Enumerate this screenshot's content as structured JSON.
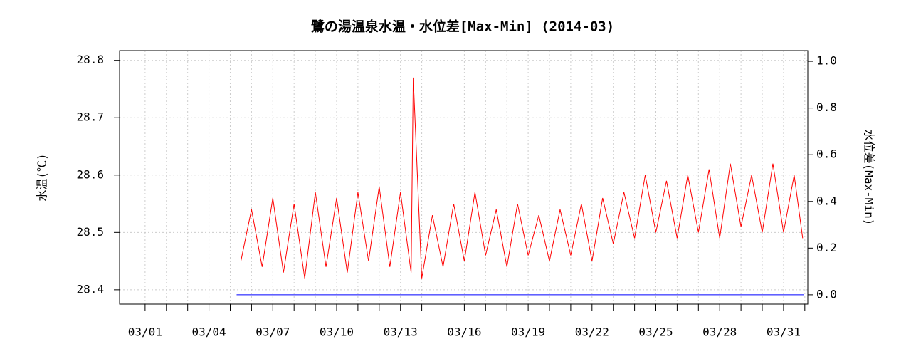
{
  "chart_data": {
    "type": "line",
    "title": "鷺の湯温泉水温・水位差[Max-Min] (2014-03)",
    "ylabel": "水温(℃)",
    "y2label": "水位差(Max-Min)",
    "grid": true,
    "xlim": [
      -0.2,
      32.14
    ],
    "xticks": [
      {
        "value": 1,
        "label": "03/01"
      },
      {
        "value": 4,
        "label": "03/04"
      },
      {
        "value": 7,
        "label": "03/07"
      },
      {
        "value": 10,
        "label": "03/10"
      },
      {
        "value": 13,
        "label": "03/13"
      },
      {
        "value": 16,
        "label": "03/16"
      },
      {
        "value": 19,
        "label": "03/19"
      },
      {
        "value": 22,
        "label": "03/22"
      },
      {
        "value": 25,
        "label": "03/25"
      },
      {
        "value": 28,
        "label": "03/28"
      },
      {
        "value": 31,
        "label": "03/31"
      }
    ],
    "xminor": [
      2,
      3,
      5,
      6,
      8,
      9,
      11,
      12,
      14,
      15,
      17,
      18,
      20,
      21,
      23,
      24,
      26,
      27,
      29,
      30,
      32
    ],
    "ylim": [
      28.375,
      28.817
    ],
    "yticks": [
      {
        "value": 28.4,
        "label": "28.4"
      },
      {
        "value": 28.5,
        "label": "28.5"
      },
      {
        "value": 28.6,
        "label": "28.6"
      },
      {
        "value": 28.7,
        "label": "28.7"
      },
      {
        "value": 28.8,
        "label": "28.8"
      }
    ],
    "y2lim": [
      -0.04,
      1.046
    ],
    "y2ticks": [
      {
        "value": 0,
        "label": "0.0"
      },
      {
        "value": 0.2,
        "label": "0.2"
      },
      {
        "value": 0.4,
        "label": "0.4"
      },
      {
        "value": 0.6,
        "label": "0.6"
      },
      {
        "value": 0.8,
        "label": "0.8"
      },
      {
        "value": 1,
        "label": "1.0"
      }
    ],
    "series": [
      {
        "color": "#ff0000",
        "x": [
          5.5,
          6,
          6.5,
          7,
          7.5,
          8,
          8.5,
          9,
          9.5,
          10,
          10.5,
          11,
          11.5,
          12,
          12.5,
          13,
          13.5,
          13.6,
          14,
          14.5,
          15,
          15.5,
          16,
          16.5,
          17,
          17.5,
          18,
          18.5,
          19,
          19.5,
          20,
          20.5,
          21,
          21.5,
          22,
          22.5,
          23,
          23.5,
          24,
          24.5,
          25,
          25.5,
          26,
          26.5,
          27,
          27.5,
          28,
          28.5,
          29,
          29.5,
          30,
          30.5,
          31,
          31.5,
          31.9
        ],
        "values": [
          28.45,
          28.54,
          28.44,
          28.56,
          28.43,
          28.55,
          28.42,
          28.57,
          28.44,
          28.56,
          28.43,
          28.57,
          28.45,
          28.58,
          28.44,
          28.57,
          28.43,
          28.77,
          28.42,
          28.53,
          28.44,
          28.55,
          28.45,
          28.57,
          28.46,
          28.54,
          28.44,
          28.55,
          28.46,
          28.53,
          28.45,
          28.54,
          28.46,
          28.55,
          28.45,
          28.56,
          28.48,
          28.57,
          28.49,
          28.6,
          28.5,
          28.59,
          28.49,
          28.6,
          28.5,
          28.61,
          28.49,
          28.62,
          28.51,
          28.6,
          28.5,
          28.62,
          28.5,
          28.6,
          28.49
        ]
      },
      {
        "color": "#0000ff",
        "axis": "y2",
        "x": [
          5.3,
          31.95
        ],
        "values": [
          0,
          0
        ]
      }
    ]
  }
}
